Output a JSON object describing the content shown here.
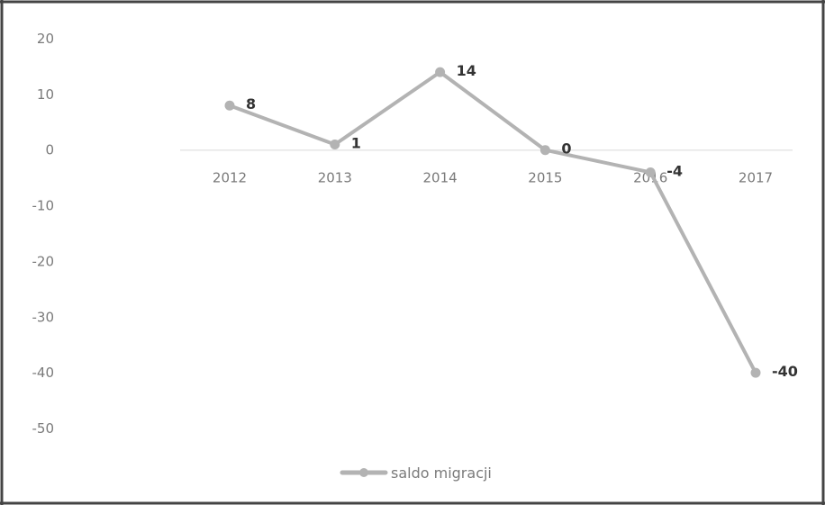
{
  "chart_data": {
    "type": "line",
    "categories": [
      "2012",
      "2013",
      "2014",
      "2015",
      "2016",
      "2017"
    ],
    "series": [
      {
        "name": "saldo migracji",
        "values": [
          8,
          1,
          14,
          0,
          -4,
          -40
        ],
        "data_labels": [
          "8",
          "1",
          "14",
          "0",
          "-4",
          "-40"
        ],
        "color": "#b3b3b3"
      }
    ],
    "yticks": [
      "20",
      "10",
      "0",
      "-10",
      "-20",
      "-30",
      "-40",
      "-50"
    ],
    "ylim": [
      -50,
      20
    ],
    "title": "",
    "xlabel": "",
    "ylabel": "",
    "grid": false,
    "legend_position": "bottom"
  }
}
